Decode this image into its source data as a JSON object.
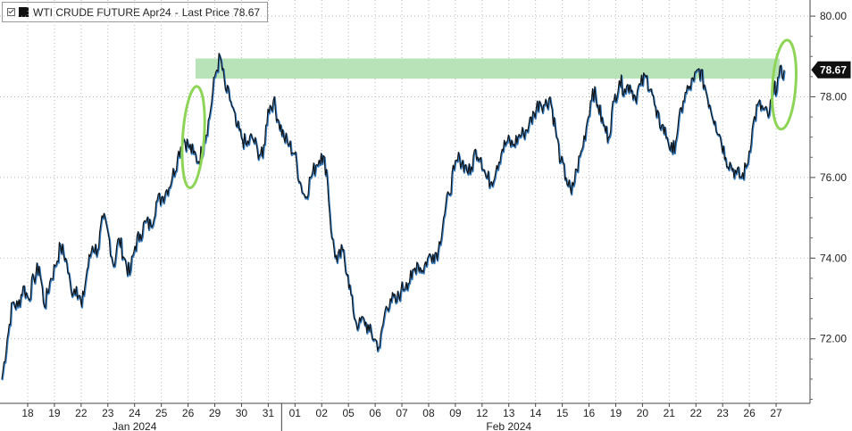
{
  "legend": {
    "series_name": "WTI CRUDE FUTURE Apr24",
    "separator": "-",
    "last_price_label": "Last Price",
    "last_price_value": "78.67",
    "swatch_color": "#111111"
  },
  "chart_data": {
    "type": "line",
    "title": "",
    "xlabel": "",
    "ylabel": "",
    "ylim": [
      70.4,
      80.4
    ],
    "y_ticks": [
      "80.00",
      "78.00",
      "76.00",
      "74.00",
      "72.00"
    ],
    "y_tick_values": [
      80,
      78,
      76,
      74,
      72
    ],
    "x_day_labels": [
      "18",
      "19",
      "22",
      "23",
      "24",
      "25",
      "26",
      "29",
      "30",
      "31",
      "01",
      "02",
      "05",
      "06",
      "07",
      "08",
      "09",
      "12",
      "13",
      "14",
      "15",
      "16",
      "19",
      "20",
      "21",
      "22",
      "23",
      "26",
      "27"
    ],
    "x_month_labels": [
      {
        "label": "Jan 2024",
        "under_day": "24"
      },
      {
        "label": "Feb 2024",
        "under_day": "13"
      }
    ],
    "month_boundary_after_day": "31",
    "last_price_box": "78.67",
    "series": [
      {
        "name": "WTI CRUDE FUTURE Apr24",
        "colors": {
          "line": "#111111",
          "shadow": "#3a7fc1"
        },
        "values": [
          71.0,
          72.0,
          72.9,
          72.8,
          73.3,
          73.0,
          73.5,
          73.8,
          72.8,
          73.4,
          73.8,
          74.3,
          74.0,
          73.2,
          73.3,
          72.8,
          73.7,
          74.3,
          74.2,
          75.0,
          74.6,
          73.8,
          74.5,
          74.0,
          73.6,
          74.3,
          74.6,
          74.9,
          74.8,
          75.4,
          75.5,
          75.7,
          76.0,
          76.5,
          77.0,
          76.8,
          76.6,
          76.4,
          76.9,
          77.5,
          78.5,
          79.0,
          78.2,
          77.9,
          77.3,
          77.0,
          76.8,
          77.0,
          76.7,
          76.5,
          77.7,
          77.9,
          77.4,
          77.0,
          76.8,
          76.6,
          75.9,
          75.5,
          76.0,
          76.3,
          76.6,
          76.2,
          74.5,
          73.9,
          74.2,
          73.6,
          72.7,
          72.3,
          72.5,
          72.2,
          72.0,
          71.8,
          72.7,
          73.0,
          72.9,
          73.2,
          73.4,
          73.5,
          73.9,
          73.7,
          74.0,
          74.1,
          74.2,
          75.0,
          75.6,
          76.2,
          76.5,
          76.3,
          76.1,
          76.7,
          76.5,
          76.0,
          75.9,
          76.3,
          76.7,
          76.9,
          76.8,
          77.0,
          77.1,
          77.3,
          77.6,
          77.9,
          77.8,
          78.0,
          77.2,
          76.4,
          76.0,
          75.6,
          76.2,
          76.7,
          77.4,
          78.2,
          77.8,
          77.3,
          77.0,
          77.9,
          78.4,
          78.2,
          78.3,
          78.0,
          78.3,
          78.5,
          78.2,
          77.5,
          77.3,
          77.0,
          76.6,
          77.2,
          77.9,
          78.2,
          78.4,
          78.7,
          78.3,
          77.8,
          77.4,
          77.0,
          76.5,
          76.3,
          76.1,
          76.0,
          76.3,
          77.2,
          77.8,
          77.7,
          77.5,
          78.1,
          78.5,
          78.67
        ]
      }
    ],
    "annotations": {
      "resistance_band": {
        "y_from": 78.45,
        "y_to": 78.95,
        "color": "#b4e2b4"
      },
      "ellipses": [
        {
          "under_day": "26",
          "color": "#8ed557"
        },
        {
          "under_day": "27",
          "color": "#8ed557"
        }
      ]
    },
    "grid": "vertical and horizontal dotted",
    "axis_side": "right"
  }
}
